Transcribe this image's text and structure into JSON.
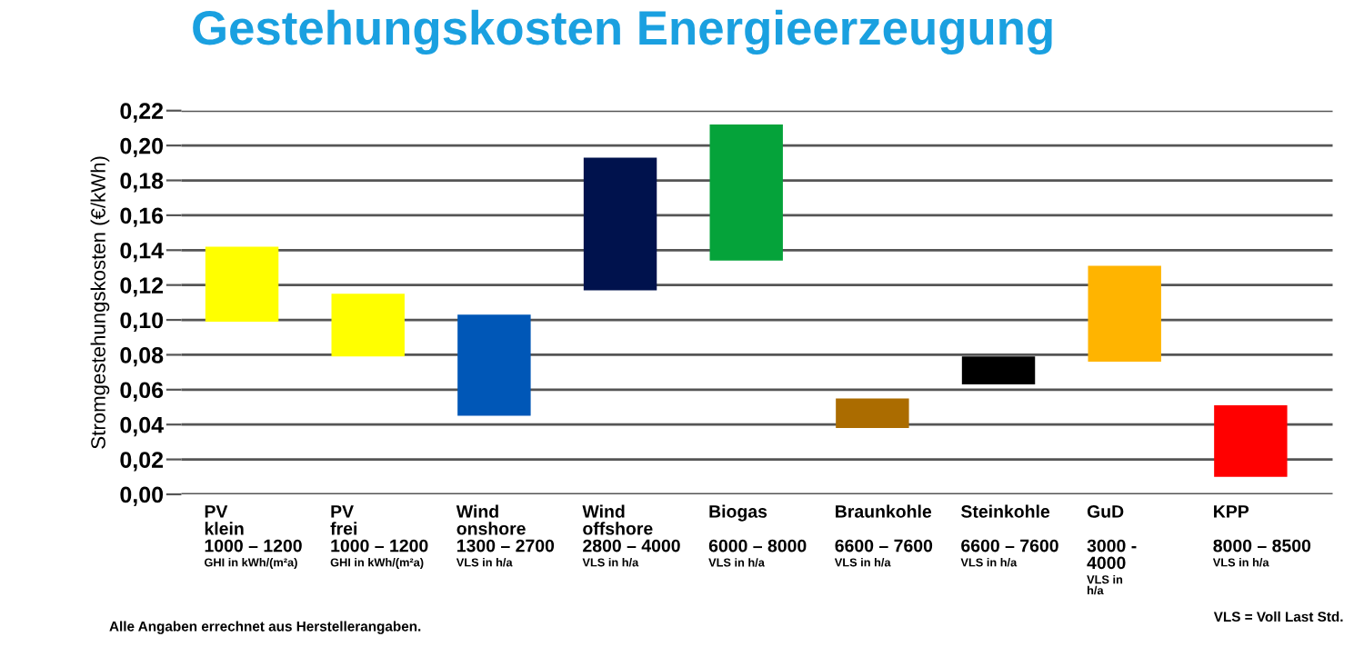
{
  "chart_data": {
    "type": "bar",
    "title": "Gestehungskosten Energieerzeugung",
    "ylabel": "Stromgestehungskosten (€/kWh)",
    "categories": [
      "PV\nklein\n1000 – 1200\nGHI in kWh/(m²a)",
      "PV\nfrei\n1000 – 1200\nGHI in kWh/(m²a)",
      "Wind\nonshore\n1300 – 2700\nVLS in h/a",
      "Wind\noffshore\n2800 – 4000\nVLS in h/a",
      "Biogas\n\n6000 – 8000\nVLS in h/a",
      "Braunkohle\n\n6600 – 7600\nVLS in h/a",
      "Steinkohle\n\n6600 – 7600\nVLS in h/a",
      "GuD\n\n3000 -\n4000\nVLS in\nh/a",
      "KPP\n\n8000 – 8500\nVLS in h/a"
    ],
    "base": [
      0.099,
      0.079,
      0.045,
      0.117,
      0.134,
      0.038,
      0.063,
      0.076,
      0.01
    ],
    "values": [
      0.043,
      0.036,
      0.058,
      0.076,
      0.078,
      0.017,
      0.016,
      0.055,
      0.041
    ],
    "colors": [
      "#ffff00",
      "#ffff00",
      "#0057b7",
      "#00124d",
      "#05a33a",
      "#ab6c00",
      "#000000",
      "#ffb400",
      "#ff0000"
    ],
    "ylim": [
      0,
      0.22
    ],
    "yticks": [
      {
        "value": 0,
        "label": "0,00"
      },
      {
        "value": 0.02,
        "label": "0,02"
      },
      {
        "value": 0.04,
        "label": "0,04"
      },
      {
        "value": 0.06,
        "label": "0,06"
      },
      {
        "value": 0.08,
        "label": "0,08"
      },
      {
        "value": 0.1,
        "label": "0,10"
      },
      {
        "value": 0.12,
        "label": "0,12"
      },
      {
        "value": 0.14,
        "label": "0,14"
      },
      {
        "value": 0.16,
        "label": "0,16"
      },
      {
        "value": 0.18,
        "label": "0,18"
      },
      {
        "value": 0.2,
        "label": "0,20"
      },
      {
        "value": 0.22,
        "label": "0,22"
      }
    ],
    "grid": "y",
    "annotations": [
      "Alle Angaben errechnet aus Herstellerangaben.",
      "VLS = Voll Last Std."
    ]
  }
}
